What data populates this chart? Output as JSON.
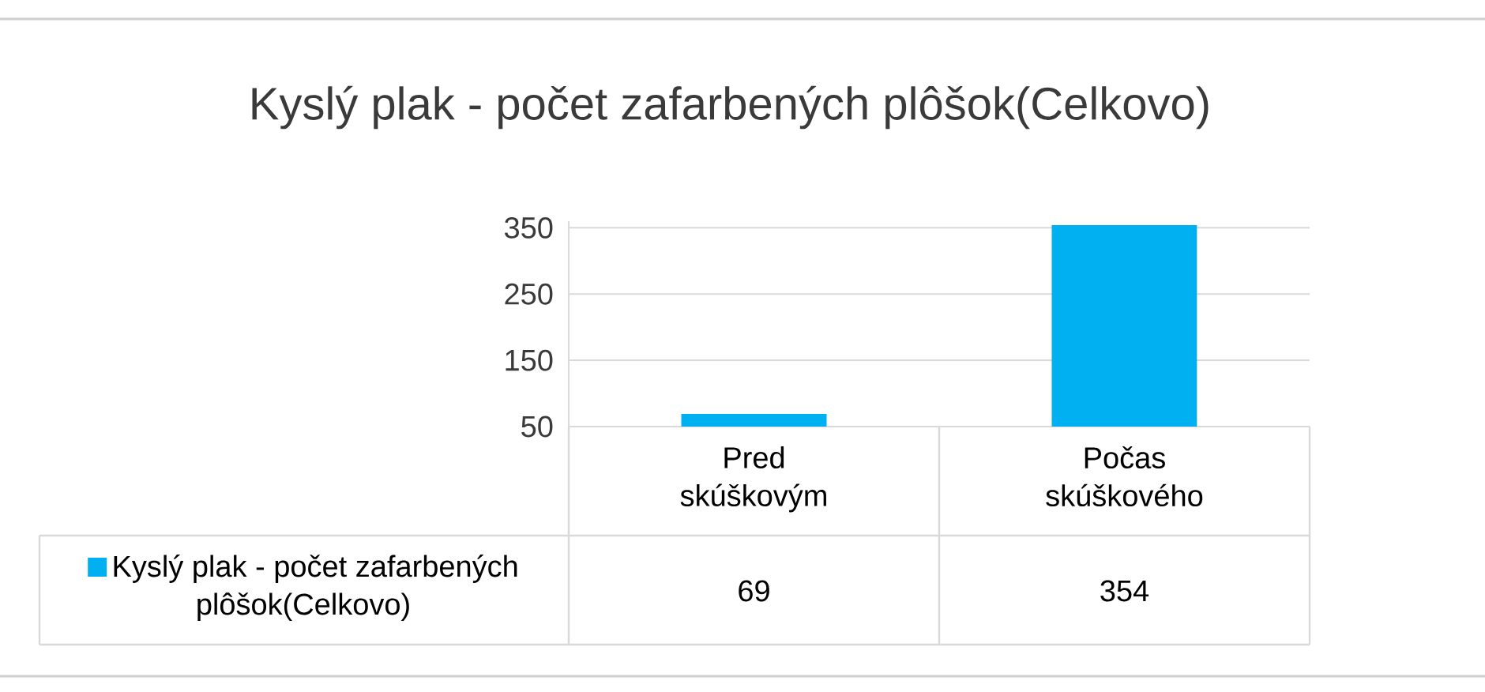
{
  "chart_data": {
    "type": "bar",
    "title": "Kyslý plak - počet zafarbených plôšok(Celkovo)",
    "categories": [
      "Pred skúškovým",
      "Počas skúškového"
    ],
    "series": [
      {
        "name": "Kyslý plak - počet zafarbených plôšok(Celkovo)",
        "color": "#00b0f0",
        "values": [
          69,
          354
        ]
      }
    ],
    "ylim": [
      50,
      360
    ],
    "yticks": [
      50,
      150,
      250,
      350
    ],
    "grid": "y",
    "legend": "bottom",
    "data_labels": true
  }
}
